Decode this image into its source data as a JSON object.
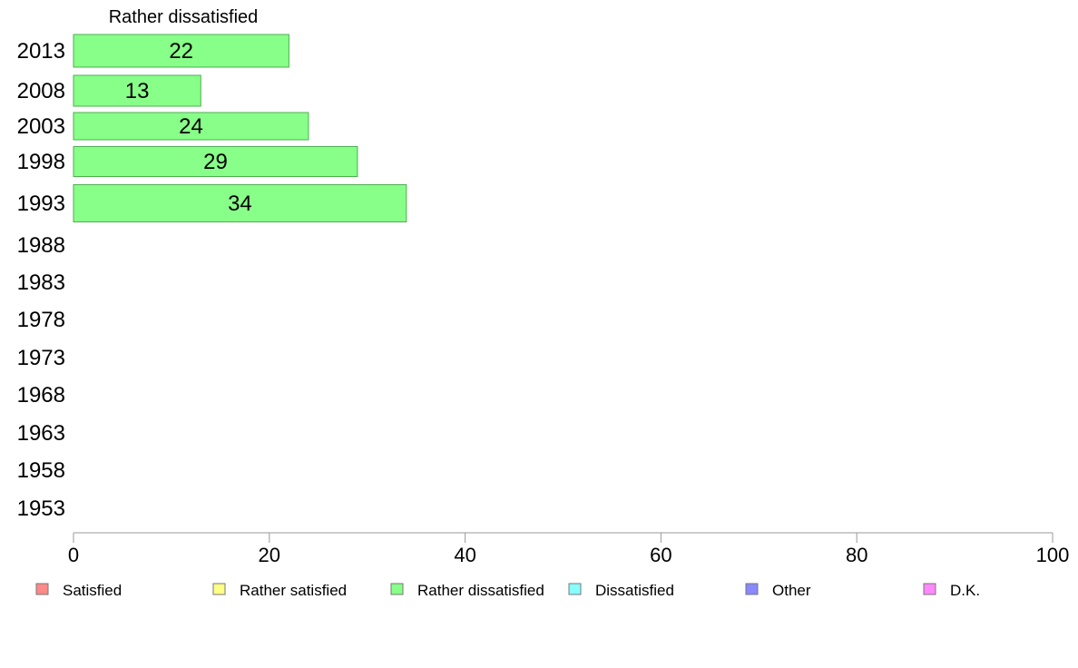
{
  "chart_data": {
    "type": "bar",
    "orientation": "horizontal",
    "title": "Rather dissatisfied",
    "categories": [
      "2013",
      "2008",
      "2003",
      "1998",
      "1993",
      "1988",
      "1983",
      "1978",
      "1973",
      "1968",
      "1963",
      "1958",
      "1953"
    ],
    "series": [
      {
        "name": "Rather dissatisfied",
        "values": [
          22,
          13,
          24,
          29,
          34,
          null,
          null,
          null,
          null,
          null,
          null,
          null,
          null
        ]
      }
    ],
    "data_labels": [
      "22",
      "13",
      "24",
      "29",
      "34"
    ],
    "xlim": [
      0,
      100
    ],
    "xticks": [
      0,
      20,
      40,
      60,
      80,
      100
    ],
    "grid": false,
    "bar_color": "#88ff88",
    "bar_stroke": "#4caf50",
    "legend": {
      "position": "bottom",
      "items": [
        {
          "label": "Satisfied",
          "color": "#ff8888"
        },
        {
          "label": "Rather satisfied",
          "color": "#ffff88"
        },
        {
          "label": "Rather dissatisfied",
          "color": "#88ff88"
        },
        {
          "label": "Dissatisfied",
          "color": "#88ffff"
        },
        {
          "label": "Other",
          "color": "#8888ff"
        },
        {
          "label": "D.K.",
          "color": "#ff88ff"
        }
      ]
    }
  }
}
